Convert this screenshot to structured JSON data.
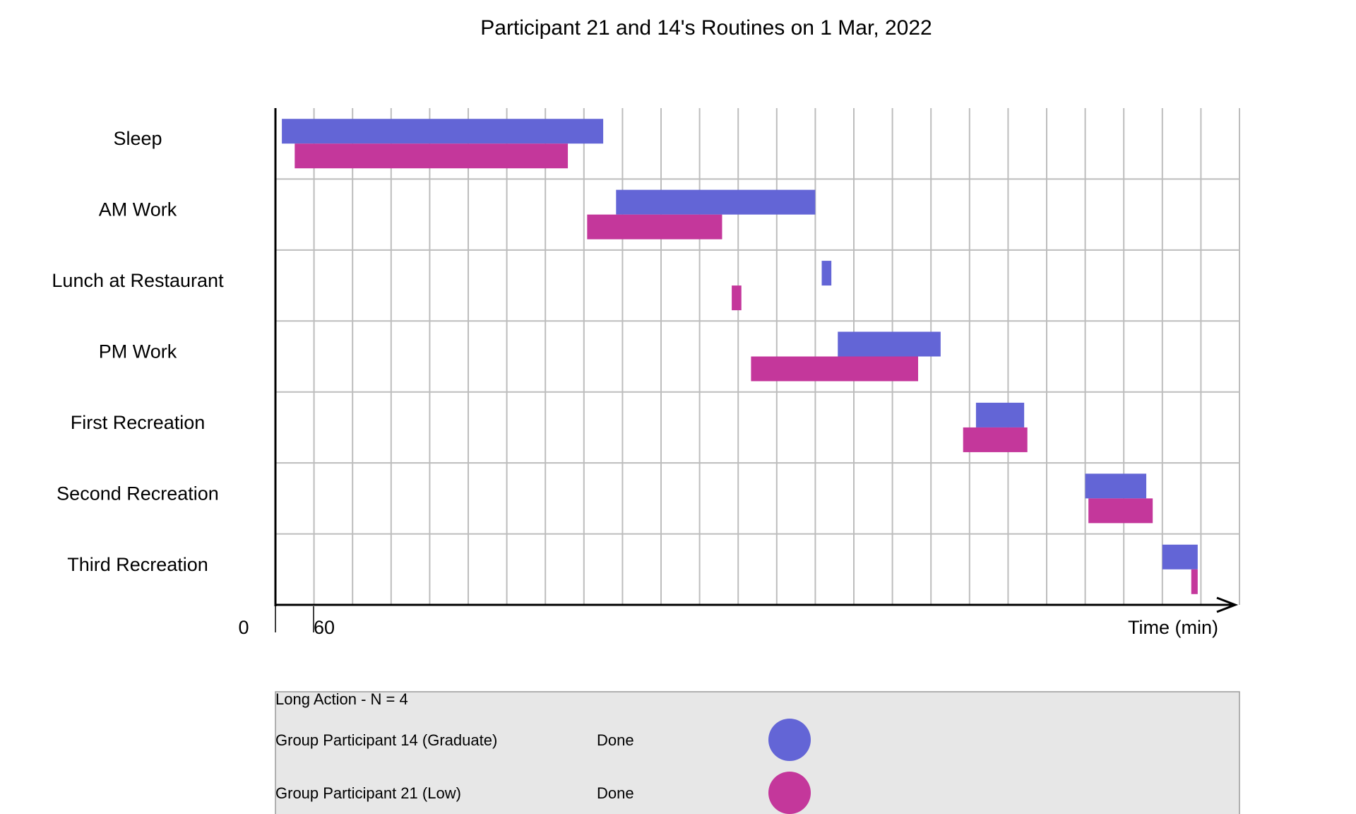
{
  "chart_data": {
    "type": "gantt",
    "title": "Participant 21 and 14's Routines on 1 Mar, 2022",
    "xlabel": "Time (min)",
    "ylabel": "",
    "x_ticks": [
      "0",
      "60"
    ],
    "xlim": [
      0,
      1500
    ],
    "grid": true,
    "categories": [
      "Sleep",
      "AM Work",
      "Lunch at Restaurant",
      "PM Work",
      "First Recreation",
      "Second Recreation",
      "Third Recreation"
    ],
    "series": [
      {
        "name": "Group Participant 14 (Graduate)",
        "status": "Done",
        "color": "#6365d6",
        "intervals": [
          [
            10,
            510
          ],
          [
            530,
            840
          ],
          [
            850,
            865
          ],
          [
            875,
            1035
          ],
          [
            1090,
            1165
          ],
          [
            1260,
            1355
          ],
          [
            1380,
            1435
          ]
        ]
      },
      {
        "name": "Group Participant 21 (Low)",
        "status": "Done",
        "color": "#c4379b",
        "intervals": [
          [
            30,
            455
          ],
          [
            485,
            695
          ],
          [
            710,
            725
          ],
          [
            740,
            1000
          ],
          [
            1070,
            1170
          ],
          [
            1265,
            1365
          ],
          [
            1425,
            1435
          ]
        ]
      }
    ],
    "legend": {
      "placement": "bottom",
      "header": "Long Action  -  N =  4"
    }
  }
}
